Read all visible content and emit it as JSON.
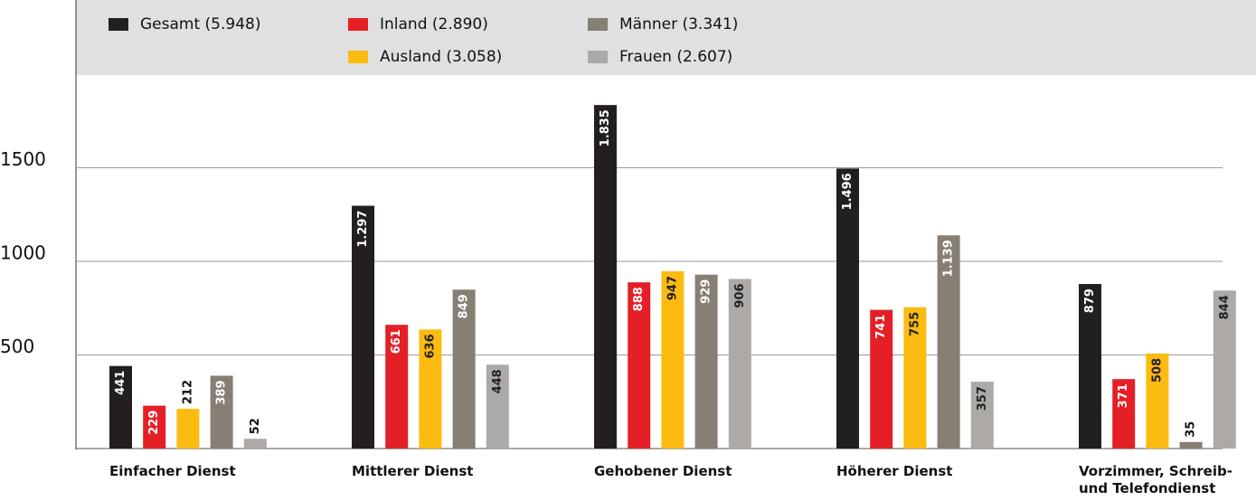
{
  "chart_data": {
    "type": "bar",
    "categories": [
      "Einfacher Dienst",
      "Mittlerer Dienst",
      "Gehobener Dienst",
      "Höherer Dienst",
      "Vorzimmer, Schreib- und Telefondienst"
    ],
    "series": [
      {
        "name": "Gesamt (5.948)",
        "color": "#231f20",
        "values": [
          441,
          1297,
          1835,
          1496,
          879
        ],
        "value_labels": [
          "441",
          "1.297",
          "1.835",
          "1.496",
          "879"
        ]
      },
      {
        "name": "Inland (2.890)",
        "color": "#e41f26",
        "values": [
          229,
          661,
          888,
          741,
          371
        ],
        "value_labels": [
          "229",
          "661",
          "888",
          "741",
          "371"
        ]
      },
      {
        "name": "Ausland (3.058)",
        "color": "#fbbb10",
        "values": [
          212,
          636,
          947,
          755,
          508
        ],
        "value_labels": [
          "212",
          "636",
          "947",
          "755",
          "508"
        ]
      },
      {
        "name": "Männer (3.341)",
        "color": "#877e74",
        "values": [
          389,
          849,
          929,
          1139,
          35
        ],
        "value_labels": [
          "389",
          "849",
          "929",
          "1.139",
          "35"
        ]
      },
      {
        "name": "Frauen (2.607)",
        "color": "#aca9a6",
        "values": [
          52,
          448,
          906,
          357,
          844
        ],
        "value_labels": [
          "52",
          "448",
          "906",
          "357",
          "844"
        ]
      }
    ],
    "ylim": [
      0,
      2000
    ],
    "yticks": [
      500,
      1000,
      1500
    ],
    "grid": true
  }
}
